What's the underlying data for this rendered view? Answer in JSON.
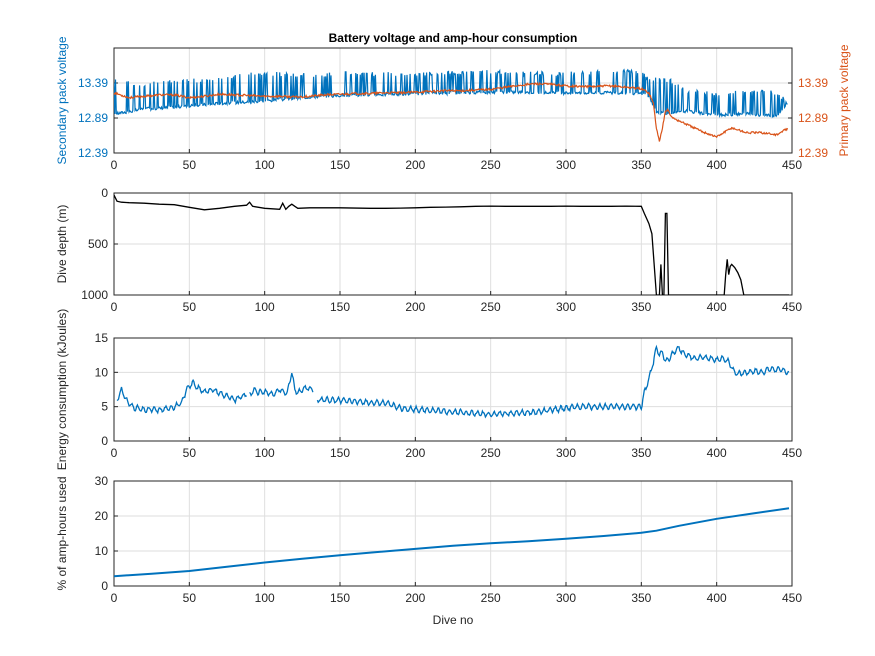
{
  "chart_data": [
    {
      "type": "line",
      "title": "Battery voltage and amp-hour consumption",
      "xlabel": "",
      "ylabel": "Secondary pack voltage",
      "ylabel_right": "Primary pack voltage",
      "xlim": [
        0,
        450
      ],
      "ylim": [
        12.39,
        13.89
      ],
      "ylim_right": [
        12.39,
        13.89
      ],
      "xticks": [
        "0",
        "50",
        "100",
        "150",
        "200",
        "250",
        "300",
        "350",
        "400",
        "450"
      ],
      "yticks": [
        "12.39",
        "12.89",
        "13.39"
      ],
      "yticks_right": [
        "12.39",
        "12.89",
        "13.39"
      ],
      "grid": true,
      "colors": {
        "left": "#0072BD",
        "right": "#D95319"
      },
      "series": [
        {
          "axis": "left",
          "color": "#0072BD",
          "style": "spiky",
          "x": [
            0,
            10,
            20,
            30,
            50,
            70,
            90,
            110,
            130,
            150,
            170,
            190,
            210,
            230,
            250,
            270,
            290,
            310,
            330,
            350,
            355,
            360,
            370,
            380,
            390,
            400,
            410,
            420,
            430,
            440,
            447
          ],
          "baseline": [
            12.95,
            12.98,
            13.02,
            13.03,
            13.06,
            13.1,
            13.12,
            13.15,
            13.19,
            13.21,
            13.22,
            13.23,
            13.24,
            13.25,
            13.26,
            13.26,
            13.25,
            13.25,
            13.25,
            13.24,
            13.2,
            12.98,
            12.95,
            12.99,
            12.96,
            12.93,
            12.94,
            12.95,
            12.93,
            12.92,
            13.1
          ],
          "peak": [
            13.45,
            13.43,
            13.35,
            13.45,
            13.45,
            13.48,
            13.55,
            13.55,
            13.53,
            13.55,
            13.55,
            13.55,
            13.56,
            13.56,
            13.58,
            13.56,
            13.55,
            13.56,
            13.58,
            13.58,
            13.45,
            13.5,
            13.45,
            13.3,
            13.28,
            13.25,
            13.28,
            13.3,
            13.3,
            13.28,
            13.15
          ]
        },
        {
          "axis": "right",
          "color": "#D95319",
          "style": "line",
          "x": [
            0,
            10,
            20,
            30,
            40,
            50,
            60,
            70,
            80,
            90,
            100,
            110,
            120,
            130,
            140,
            150,
            160,
            170,
            180,
            190,
            200,
            210,
            220,
            230,
            240,
            250,
            260,
            270,
            280,
            290,
            300,
            310,
            320,
            330,
            340,
            350,
            355,
            358,
            360,
            362,
            364,
            366,
            368,
            370,
            375,
            380,
            390,
            400,
            410,
            420,
            430,
            440,
            447
          ],
          "y": [
            13.25,
            13.18,
            13.2,
            13.22,
            13.22,
            13.18,
            13.2,
            13.23,
            13.22,
            13.21,
            13.2,
            13.2,
            13.19,
            13.2,
            13.22,
            13.23,
            13.24,
            13.24,
            13.25,
            13.25,
            13.26,
            13.27,
            13.28,
            13.28,
            13.29,
            13.3,
            13.33,
            13.36,
            13.38,
            13.37,
            13.35,
            13.34,
            13.34,
            13.35,
            13.33,
            13.31,
            13.25,
            13.1,
            12.75,
            12.55,
            12.75,
            13.0,
            13.0,
            12.9,
            12.85,
            12.8,
            12.7,
            12.62,
            12.75,
            12.68,
            12.68,
            12.65,
            12.74
          ]
        }
      ]
    },
    {
      "type": "line",
      "xlabel": "",
      "ylabel": "Dive depth (m)",
      "xlim": [
        0,
        450
      ],
      "ylim": [
        0,
        1000
      ],
      "y_reversed": true,
      "xticks": [
        "0",
        "50",
        "100",
        "150",
        "200",
        "250",
        "300",
        "350",
        "400",
        "450"
      ],
      "yticks": [
        "0",
        "500",
        "1000"
      ],
      "yticks_display": [
        "0",
        "500",
        "1000"
      ],
      "grid": true,
      "colors": {
        "line": "#000000"
      },
      "series": [
        {
          "color": "#000000",
          "x": [
            0,
            2,
            5,
            10,
            20,
            30,
            40,
            50,
            60,
            70,
            80,
            88,
            90,
            92,
            100,
            110,
            112,
            114,
            116,
            118,
            120,
            122,
            130,
            150,
            170,
            180,
            190,
            200,
            210,
            220,
            230,
            240,
            250,
            260,
            270,
            280,
            290,
            300,
            310,
            320,
            330,
            340,
            350,
            352,
            355,
            357,
            360,
            362,
            363,
            364,
            365,
            366,
            367,
            368,
            369,
            370,
            380,
            390,
            400,
            405,
            406,
            407,
            408,
            409,
            410,
            412,
            414,
            416,
            418,
            420,
            430,
            440,
            448
          ],
          "y": [
            20,
            80,
            90,
            95,
            100,
            110,
            115,
            140,
            165,
            150,
            130,
            120,
            90,
            130,
            150,
            160,
            100,
            160,
            130,
            110,
            130,
            150,
            145,
            145,
            150,
            150,
            148,
            145,
            140,
            138,
            135,
            130,
            128,
            130,
            130,
            130,
            130,
            128,
            130,
            130,
            130,
            128,
            130,
            200,
            300,
            400,
            1000,
            1000,
            700,
            1000,
            1000,
            200,
            200,
            1000,
            1000,
            1000,
            1000,
            1000,
            1000,
            1000,
            800,
            650,
            800,
            720,
            700,
            730,
            780,
            850,
            1000,
            1000,
            1000,
            1000,
            1000
          ]
        }
      ]
    },
    {
      "type": "line",
      "xlabel": "",
      "ylabel": "Energy consumption (kJoules)",
      "xlim": [
        0,
        450
      ],
      "ylim": [
        0,
        15
      ],
      "xticks": [
        "0",
        "50",
        "100",
        "150",
        "200",
        "250",
        "300",
        "350",
        "400",
        "450"
      ],
      "yticks": [
        "0",
        "5",
        "10",
        "15"
      ],
      "grid": true,
      "colors": {
        "line": "#0072BD"
      },
      "series": [
        {
          "color": "#0072BD",
          "style": "wavy",
          "segments": [
            {
              "x": [
                2,
                5,
                8,
                12,
                15,
                20,
                25,
                30,
                35,
                40,
                45,
                48,
                52,
                55,
                60,
                65,
                70,
                75,
                80,
                85,
                88
              ],
              "y": [
                6.0,
                7.5,
                6.0,
                5.0,
                4.8,
                4.5,
                4.6,
                4.5,
                4.7,
                5.0,
                5.5,
                7.5,
                8.5,
                7.8,
                7.2,
                7.5,
                7.0,
                6.5,
                6.0,
                6.5,
                6.8
              ]
            },
            {
              "x": [
                90,
                93,
                96,
                100,
                105,
                110,
                115,
                118,
                120,
                122,
                125,
                128,
                132
              ],
              "y": [
                6.8,
                7.5,
                7.0,
                7.2,
                6.8,
                7.5,
                7.0,
                10.0,
                7.5,
                7.0,
                7.5,
                7.8,
                7.5
              ]
            },
            {
              "x": [
                135,
                140,
                150,
                160,
                170,
                180,
                185,
                190,
                200,
                210,
                220,
                230,
                240,
                250,
                260,
                270,
                280,
                290,
                300,
                310,
                320,
                330,
                340,
                350,
                352,
                355,
                358,
                360,
                362,
                364,
                366,
                368,
                370,
                372,
                375,
                378,
                380,
                385,
                390,
                395,
                400,
                405,
                408,
                412,
                415,
                420,
                425,
                430,
                435,
                440,
                445,
                448
              ],
              "y": [
                6.0,
                6.0,
                5.9,
                5.8,
                5.6,
                5.5,
                5.2,
                4.8,
                4.6,
                4.5,
                4.3,
                4.2,
                4.0,
                3.9,
                4.0,
                4.1,
                4.2,
                4.5,
                4.8,
                5.0,
                5.0,
                5.0,
                5.0,
                5.0,
                7.0,
                9.0,
                11.5,
                13.5,
                12.5,
                13.0,
                11.5,
                12.0,
                12.5,
                13.0,
                13.5,
                12.8,
                12.5,
                12.0,
                12.2,
                12.0,
                11.8,
                12.0,
                11.5,
                10.0,
                9.8,
                10.0,
                10.2,
                10.0,
                10.5,
                10.4,
                10.3,
                9.8
              ]
            }
          ]
        }
      ]
    },
    {
      "type": "line",
      "xlabel": "Dive no",
      "ylabel": "% of amp-hours used",
      "xlim": [
        0,
        450
      ],
      "ylim": [
        0,
        30
      ],
      "xticks": [
        "0",
        "50",
        "100",
        "150",
        "200",
        "250",
        "300",
        "350",
        "400",
        "450"
      ],
      "yticks": [
        "0",
        "10",
        "20",
        "30"
      ],
      "grid": true,
      "colors": {
        "line": "#0072BD"
      },
      "series": [
        {
          "color": "#0072BD",
          "x": [
            0,
            25,
            50,
            75,
            100,
            125,
            150,
            175,
            200,
            225,
            250,
            275,
            300,
            325,
            350,
            360,
            375,
            400,
            425,
            448
          ],
          "y": [
            2.8,
            3.5,
            4.3,
            5.5,
            6.7,
            7.8,
            8.8,
            9.7,
            10.6,
            11.5,
            12.2,
            12.8,
            13.5,
            14.3,
            15.2,
            15.8,
            17.2,
            19.2,
            20.8,
            22.2
          ]
        }
      ]
    }
  ]
}
